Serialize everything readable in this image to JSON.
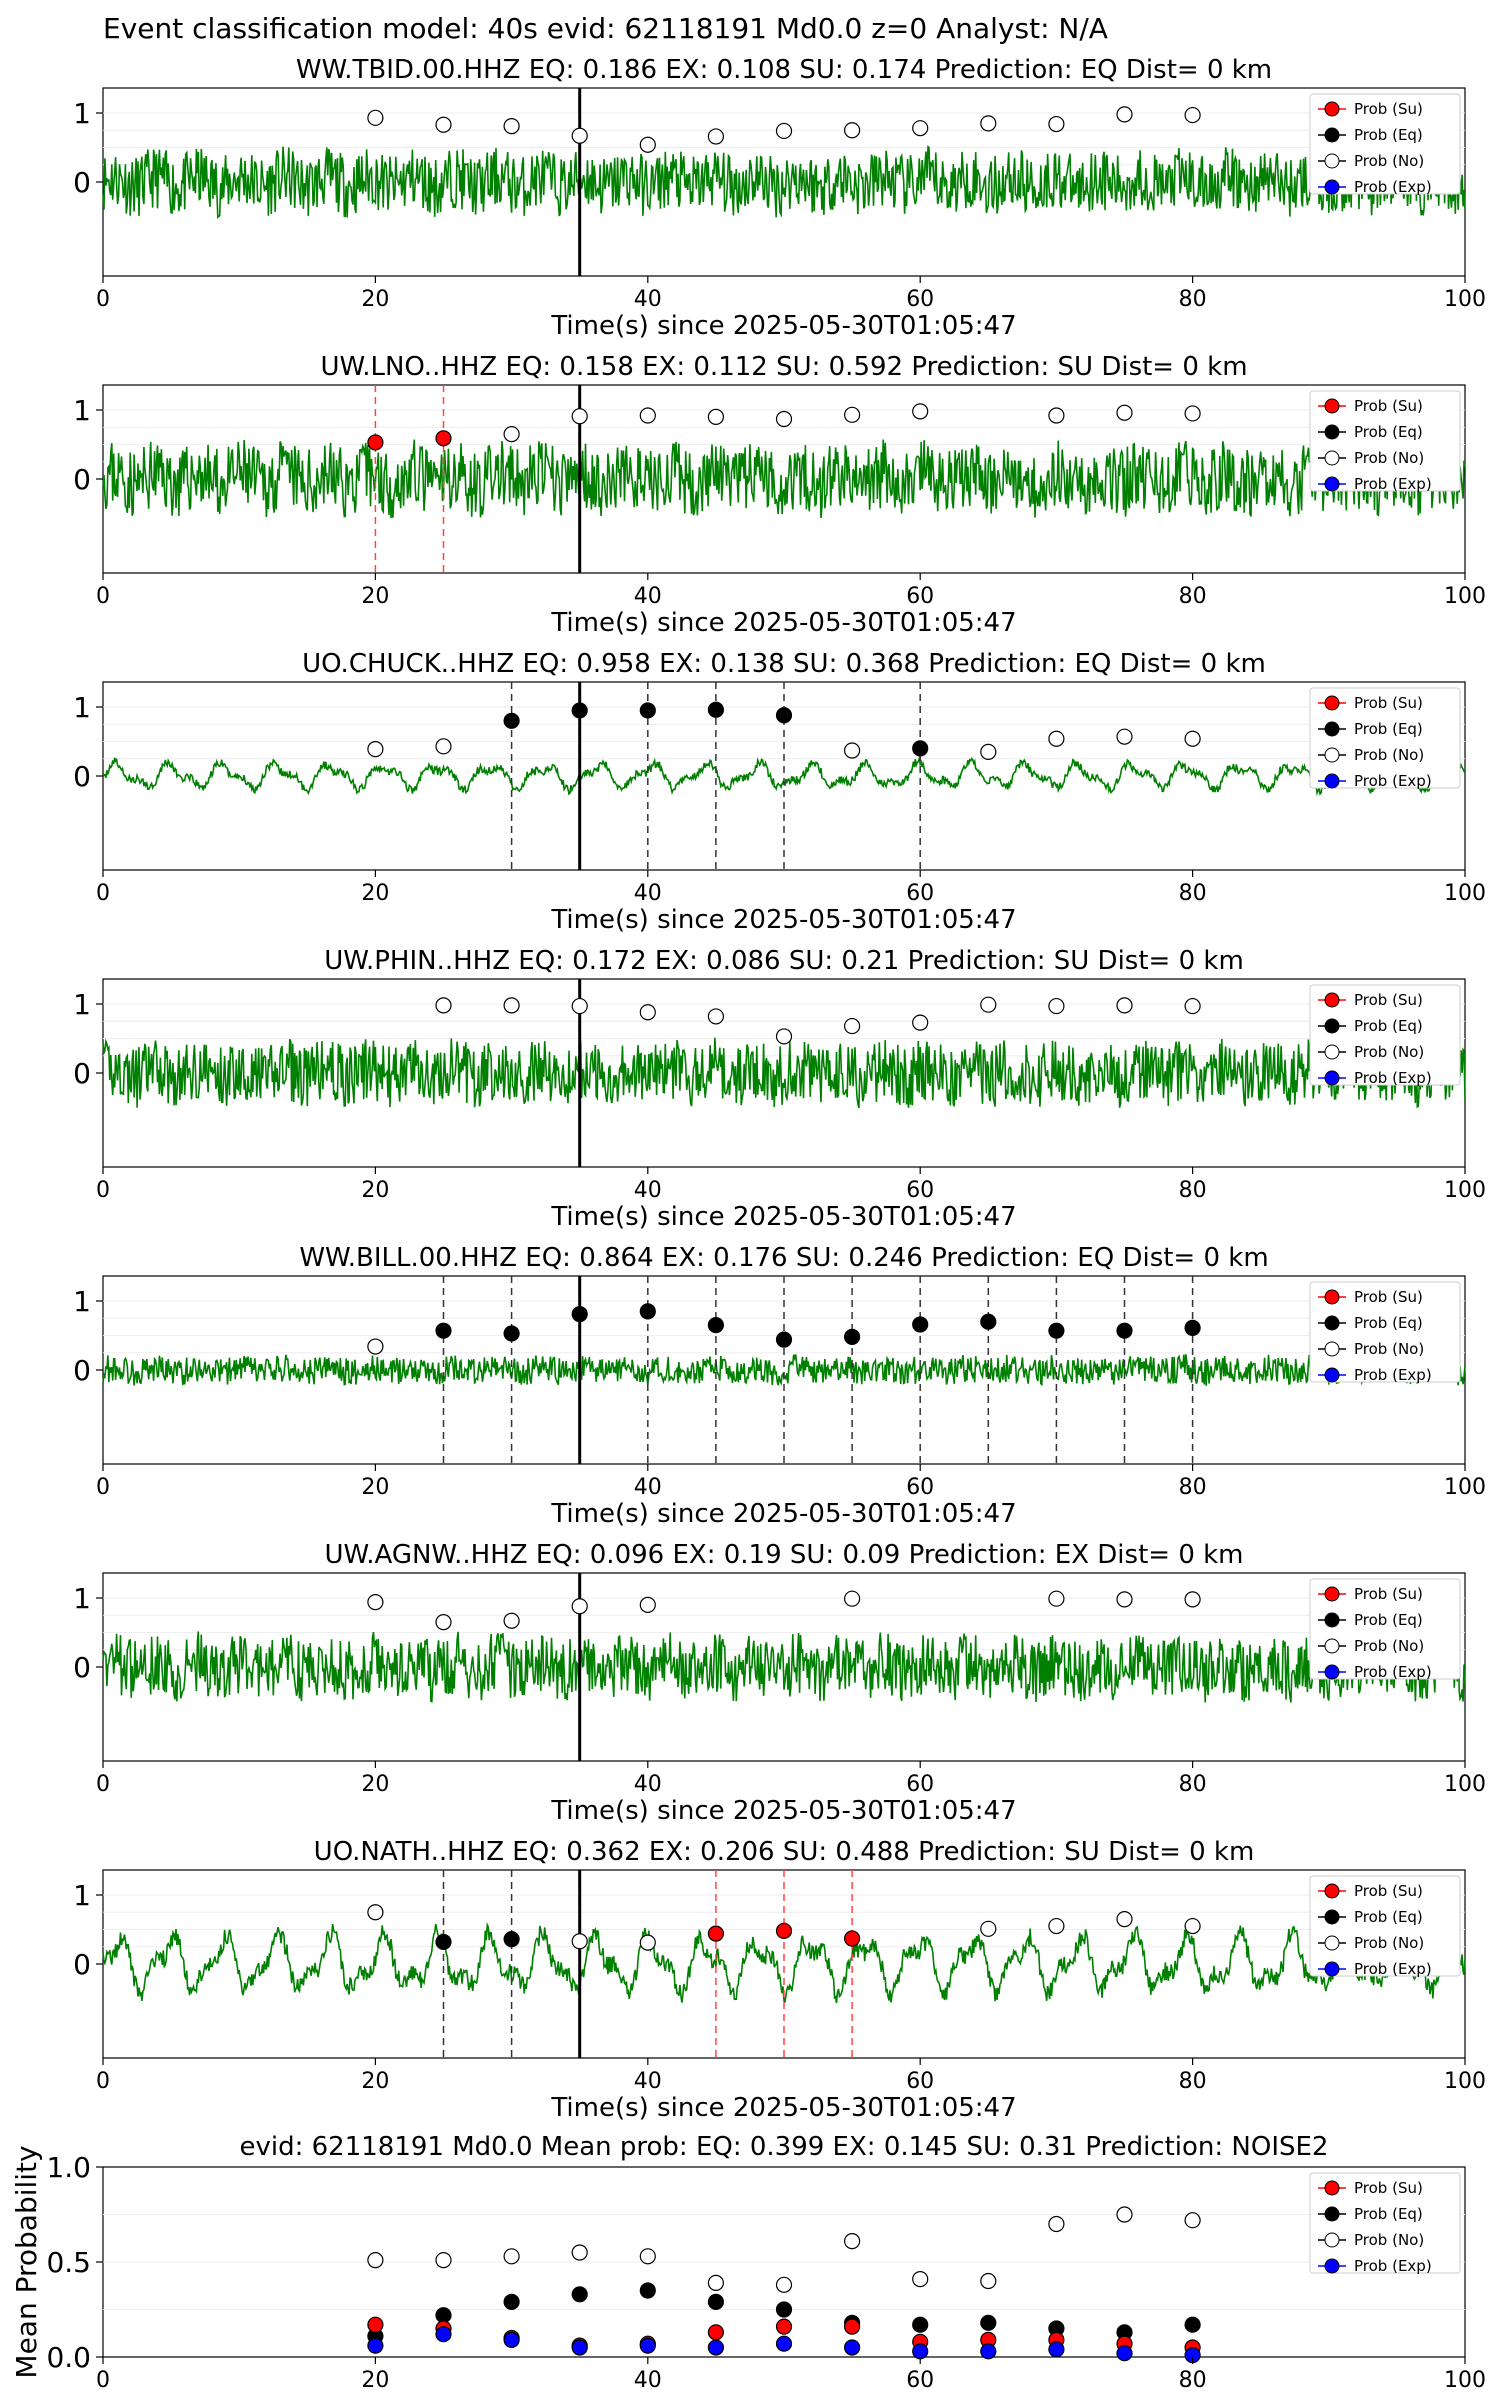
{
  "suptitle": "Event classification model: 40s evid: 62118191 Md0.0 z=0 Analyst: N/A",
  "colors": {
    "su": "#ff0000",
    "eq": "#000000",
    "no": "#ffffff",
    "exp": "#0000ff",
    "trace": "#008000"
  },
  "legend": [
    "Prob (Su)",
    "Prob (Eq)",
    "Prob (No)",
    "Prob (Exp)"
  ],
  "chart_data": [
    {
      "type": "line",
      "title": "WW.TBID.00.HHZ   EQ: 0.186  EX: 0.108  SU: 0.174   Prediction: EQ    Dist= 0 km",
      "xlabel": "Time(s) since 2025-05-30T01:05:47",
      "xlim": [
        0,
        100
      ],
      "xticks": [
        "0",
        "20",
        "40",
        "60",
        "80",
        "100"
      ],
      "yticks": [
        "0",
        "1"
      ],
      "pick_time": 35,
      "legend_position": "upper right",
      "noise_x": [
        20,
        25,
        30,
        35,
        40,
        45,
        50,
        55,
        60,
        65,
        70,
        75,
        80
      ],
      "noise_y": [
        0.93,
        0.83,
        0.81,
        0.67,
        0.54,
        0.66,
        0.74,
        0.75,
        0.78,
        0.85,
        0.84,
        0.98,
        0.97
      ],
      "eq_x": [],
      "eq_y": [],
      "su_x": [],
      "su_y": [],
      "trace": {
        "amp": 0.45,
        "kind": "noisy",
        "seed": 11
      }
    },
    {
      "type": "line",
      "title": "UW.LNO..HHZ   EQ: 0.158  EX: 0.112  SU: 0.592   Prediction: SU    Dist= 0 km",
      "xlabel": "Time(s) since 2025-05-30T01:05:47",
      "xlim": [
        0,
        100
      ],
      "xticks": [
        "0",
        "20",
        "40",
        "60",
        "80",
        "100"
      ],
      "yticks": [
        "0",
        "1"
      ],
      "pick_time": 35,
      "legend_position": "upper right",
      "noise_x": [
        30,
        35,
        40,
        45,
        50,
        55,
        60,
        70,
        75,
        80
      ],
      "noise_y": [
        0.65,
        0.91,
        0.92,
        0.9,
        0.87,
        0.93,
        0.98,
        0.92,
        0.96,
        0.95
      ],
      "eq_x": [],
      "eq_y": [],
      "su_x": [
        20,
        25
      ],
      "su_y": [
        0.53,
        0.59
      ],
      "trace": {
        "amp": 0.5,
        "kind": "noisy",
        "seed": 23
      }
    },
    {
      "type": "line",
      "title": "UO.CHUCK..HHZ   EQ: 0.958  EX: 0.138  SU: 0.368   Prediction: EQ    Dist= 0 km",
      "xlabel": "Time(s) since 2025-05-30T01:05:47",
      "xlim": [
        0,
        100
      ],
      "xticks": [
        "0",
        "20",
        "40",
        "60",
        "80",
        "100"
      ],
      "yticks": [
        "0",
        "1"
      ],
      "pick_time": 35,
      "legend_position": "upper right",
      "noise_x": [
        20,
        25,
        55,
        65,
        70,
        75,
        80
      ],
      "noise_y": [
        0.39,
        0.43,
        0.37,
        0.35,
        0.54,
        0.57,
        0.54
      ],
      "eq_x": [
        30,
        35,
        40,
        45,
        50,
        60
      ],
      "eq_y": [
        0.8,
        0.95,
        0.95,
        0.96,
        0.88,
        0.4
      ],
      "su_x": [],
      "su_y": [],
      "trace": {
        "amp": 0.2,
        "kind": "smooth",
        "seed": 37
      }
    },
    {
      "type": "line",
      "title": "UW.PHIN..HHZ   EQ: 0.172  EX: 0.086  SU: 0.21   Prediction: SU    Dist= 0 km",
      "xlabel": "Time(s) since 2025-05-30T01:05:47",
      "xlim": [
        0,
        100
      ],
      "xticks": [
        "0",
        "20",
        "40",
        "60",
        "80",
        "100"
      ],
      "yticks": [
        "0",
        "1"
      ],
      "pick_time": 35,
      "legend_position": "upper right",
      "noise_x": [
        25,
        30,
        35,
        40,
        45,
        50,
        55,
        60,
        65,
        70,
        75,
        80
      ],
      "noise_y": [
        0.98,
        0.98,
        0.97,
        0.88,
        0.82,
        0.53,
        0.68,
        0.73,
        0.99,
        0.97,
        0.98,
        0.97
      ],
      "eq_x": [],
      "eq_y": [],
      "su_x": [],
      "su_y": [],
      "trace": {
        "amp": 0.45,
        "kind": "noisy",
        "seed": 41
      }
    },
    {
      "type": "line",
      "title": "WW.BILL.00.HHZ   EQ: 0.864  EX: 0.176  SU: 0.246   Prediction: EQ    Dist= 0 km",
      "xlabel": "Time(s) since 2025-05-30T01:05:47",
      "xlim": [
        0,
        100
      ],
      "xticks": [
        "0",
        "20",
        "40",
        "60",
        "80",
        "100"
      ],
      "yticks": [
        "0",
        "1"
      ],
      "pick_time": 35,
      "legend_position": "upper right",
      "noise_x": [
        20
      ],
      "noise_y": [
        0.34
      ],
      "eq_x": [
        25,
        30,
        35,
        40,
        45,
        50,
        55,
        60,
        65,
        70,
        75,
        80
      ],
      "eq_y": [
        0.57,
        0.53,
        0.81,
        0.85,
        0.65,
        0.44,
        0.48,
        0.66,
        0.7,
        0.57,
        0.57,
        0.61
      ],
      "su_x": [],
      "su_y": [],
      "trace": {
        "amp": 0.2,
        "kind": "noisy",
        "seed": 53
      }
    },
    {
      "type": "line",
      "title": "UW.AGNW..HHZ   EQ: 0.096  EX: 0.19  SU: 0.09   Prediction: EX    Dist= 0 km",
      "xlabel": "Time(s) since 2025-05-30T01:05:47",
      "xlim": [
        0,
        100
      ],
      "xticks": [
        "0",
        "20",
        "40",
        "60",
        "80",
        "100"
      ],
      "yticks": [
        "0",
        "1"
      ],
      "pick_time": 35,
      "legend_position": "upper right",
      "noise_x": [
        20,
        25,
        30,
        35,
        40,
        55,
        70,
        75,
        80
      ],
      "noise_y": [
        0.94,
        0.65,
        0.67,
        0.88,
        0.9,
        0.99,
        0.99,
        0.98,
        0.98
      ],
      "eq_x": [],
      "eq_y": [],
      "su_x": [],
      "su_y": [],
      "trace": {
        "amp": 0.45,
        "kind": "noisy",
        "seed": 67
      }
    },
    {
      "type": "line",
      "title": "UO.NATH..HHZ   EQ: 0.362  EX: 0.206  SU: 0.488   Prediction: SU    Dist= 0 km",
      "xlabel": "Time(s) since 2025-05-30T01:05:47",
      "xlim": [
        0,
        100
      ],
      "xticks": [
        "0",
        "20",
        "40",
        "60",
        "80",
        "100"
      ],
      "yticks": [
        "0",
        "1"
      ],
      "pick_time": 35,
      "legend_position": "upper right",
      "noise_x": [
        20,
        35,
        40,
        65,
        70,
        75,
        80
      ],
      "noise_y": [
        0.75,
        0.33,
        0.31,
        0.51,
        0.55,
        0.65,
        0.55
      ],
      "eq_x": [
        25,
        30
      ],
      "eq_y": [
        0.32,
        0.36
      ],
      "su_x": [
        45,
        50,
        55
      ],
      "su_y": [
        0.44,
        0.48,
        0.37
      ],
      "trace": {
        "amp": 0.45,
        "kind": "smooth",
        "seed": 79
      }
    },
    {
      "type": "scatter",
      "title": "evid: 62118191  Md0.0   Mean prob:   EQ: 0.399  EX: 0.145  SU: 0.31   Prediction: NOISE2",
      "ylabel": "Mean Probability",
      "xlim": [
        0,
        100
      ],
      "ylim": [
        0,
        1.0
      ],
      "xticks": [
        "0",
        "20",
        "40",
        "60",
        "80",
        "100"
      ],
      "yticks": [
        "0.0",
        "0.5",
        "1.0"
      ],
      "legend_position": "upper right",
      "x": [
        20,
        25,
        30,
        35,
        40,
        45,
        50,
        55,
        60,
        65,
        70,
        75,
        80
      ],
      "series": [
        {
          "name": "Prob (Su)",
          "values": [
            0.17,
            0.15,
            0.1,
            0.06,
            0.07,
            0.13,
            0.16,
            0.16,
            0.08,
            0.09,
            0.09,
            0.07,
            0.05
          ]
        },
        {
          "name": "Prob (Eq)",
          "values": [
            0.11,
            0.22,
            0.29,
            0.33,
            0.35,
            0.29,
            0.25,
            0.18,
            0.17,
            0.18,
            0.15,
            0.13,
            0.17
          ]
        },
        {
          "name": "Prob (No)",
          "values": [
            0.51,
            0.51,
            0.53,
            0.55,
            0.53,
            0.39,
            0.38,
            0.61,
            0.41,
            0.4,
            0.7,
            0.75,
            0.72
          ]
        },
        {
          "name": "Prob (Exp)",
          "values": [
            0.06,
            0.12,
            0.09,
            0.05,
            0.06,
            0.05,
            0.07,
            0.05,
            0.03,
            0.03,
            0.04,
            0.02,
            0.01
          ]
        }
      ]
    }
  ]
}
